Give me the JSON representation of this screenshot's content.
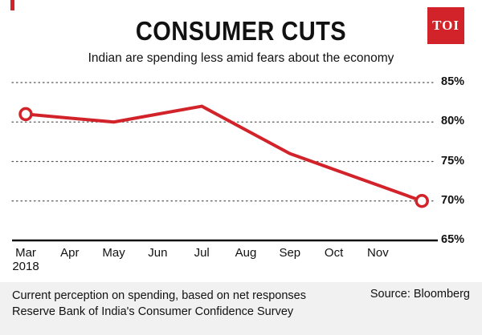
{
  "logo": {
    "text": "TOI"
  },
  "colors": {
    "accent": "#d2232a",
    "text": "#111111",
    "footer_bg": "#f1f1f1"
  },
  "header": {
    "title": "CONSUMER CUTS",
    "subtitle": "Indian are spending less amid fears about the economy"
  },
  "chart_data": {
    "type": "line",
    "title": "CONSUMER CUTS",
    "subtitle": "Indian are spending less amid fears about the economy",
    "x": [
      "Mar",
      "Apr",
      "May",
      "Jun",
      "Jul",
      "Aug",
      "Sep",
      "Oct",
      "Nov",
      ""
    ],
    "x_sublabel": {
      "index": 0,
      "text": "2018"
    },
    "series": [
      {
        "name": "Current perception on spending (net responses)",
        "values": [
          81,
          80.5,
          80,
          81,
          82,
          79,
          76,
          74,
          72,
          70
        ]
      }
    ],
    "unit": "%",
    "ylim": [
      65,
      85
    ],
    "yticks": [
      85,
      80,
      75,
      70,
      65
    ],
    "grid": "dotted-horizontal",
    "legend": "none",
    "line_color": "#d2232a",
    "marker_points": [
      0,
      9
    ],
    "marker_style": "open-circle"
  },
  "footer": {
    "note_line1": "Current perception on spending, based on net responses",
    "note_line2": "Reserve Bank of India's Consumer Confidence Survey",
    "source": "Source: Bloomberg"
  }
}
